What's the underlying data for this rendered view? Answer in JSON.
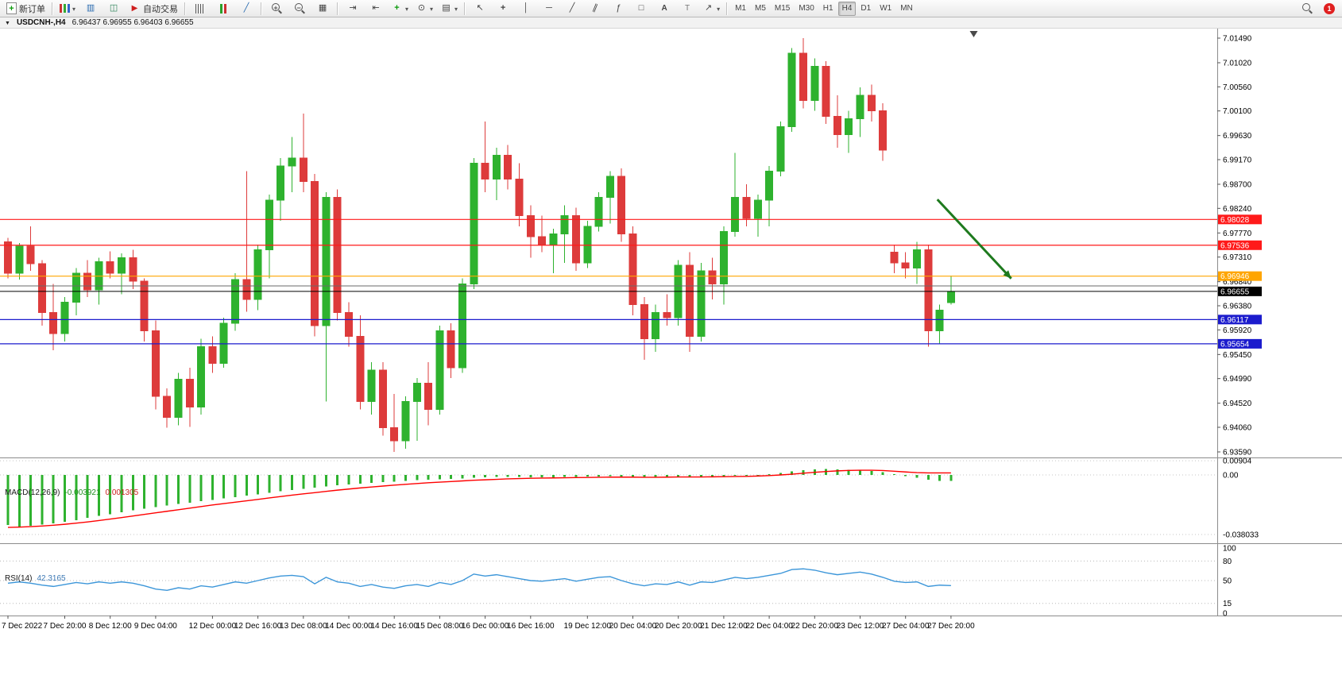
{
  "toolbar": {
    "new_order_label": "新订单",
    "autotrading_label": "自动交易",
    "timeframes": [
      "M1",
      "M5",
      "M15",
      "M30",
      "H1",
      "H4",
      "D1",
      "W1",
      "MN"
    ],
    "active_timeframe": "H4",
    "notification_count": "1",
    "icon_names": [
      "new-order-icon",
      "new-chart-icon",
      "profiles-icon",
      "data-window-icon",
      "autotrading-icon",
      "bars-chart-icon",
      "candlestick-chart-icon",
      "line-chart-icon",
      "zoom-in-icon",
      "zoom-out-icon",
      "tile-windows-icon",
      "auto-scroll-icon",
      "chart-shift-icon",
      "indicators-icon",
      "periods-icon",
      "templates-icon",
      "cursor-icon",
      "crosshair-icon",
      "vertical-line-icon",
      "horizontal-line-icon",
      "trendline-icon",
      "channel-icon",
      "fibonacci-icon",
      "shapes-icon",
      "text-icon",
      "text-label-icon",
      "arrows-icon",
      "search-icon"
    ]
  },
  "chart_header": {
    "symbol_period": "USDCNH-,H4",
    "ohlc_text": "6.96437 6.96955 6.96403 6.96655"
  },
  "indicators": {
    "macd_label": "MACD(12,26,9)",
    "macd_value": "-0.003921",
    "macd_signal_value": "0.001305",
    "rsi_label": "RSI(14)",
    "rsi_value": "42.3165"
  },
  "chart_data": {
    "type": "candlestick",
    "symbol": "USDCNH-",
    "timeframe": "H4",
    "bull_color": "#2eb22e",
    "bear_color": "#dd3b3b",
    "price_axis_ticks": [
      "7.01490",
      "7.01020",
      "7.00560",
      "7.00100",
      "6.99630",
      "6.99170",
      "6.98700",
      "6.98240",
      "6.97770",
      "6.97310",
      "6.96840",
      "6.96380",
      "6.95920",
      "6.95450",
      "6.94990",
      "6.94520",
      "6.94060",
      "6.93590"
    ],
    "time_labels": [
      {
        "text": "7 Dec 2022",
        "i": 0
      },
      {
        "text": "7 Dec 20:00",
        "i": 5
      },
      {
        "text": "8 Dec 12:00",
        "i": 9
      },
      {
        "text": "9 Dec 04:00",
        "i": 13
      },
      {
        "text": "12 Dec 00:00",
        "i": 18
      },
      {
        "text": "12 Dec 16:00",
        "i": 22
      },
      {
        "text": "13 Dec 08:00",
        "i": 26
      },
      {
        "text": "14 Dec 00:00",
        "i": 30
      },
      {
        "text": "14 Dec 16:00",
        "i": 34
      },
      {
        "text": "15 Dec 08:00",
        "i": 38
      },
      {
        "text": "16 Dec 00:00",
        "i": 42
      },
      {
        "text": "16 Dec 16:00",
        "i": 46
      },
      {
        "text": "19 Dec 12:00",
        "i": 51
      },
      {
        "text": "20 Dec 04:00",
        "i": 55
      },
      {
        "text": "20 Dec 20:00",
        "i": 59
      },
      {
        "text": "21 Dec 12:00",
        "i": 63
      },
      {
        "text": "22 Dec 04:00",
        "i": 67
      },
      {
        "text": "22 Dec 20:00",
        "i": 71
      },
      {
        "text": "23 Dec 12:00",
        "i": 75
      },
      {
        "text": "27 Dec 04:00",
        "i": 79
      },
      {
        "text": "27 Dec 20:00",
        "i": 83
      }
    ],
    "candles": [
      [
        6.976,
        6.9768,
        6.969,
        6.97
      ],
      [
        6.97,
        6.9758,
        6.9688,
        6.9752
      ],
      [
        6.9752,
        6.979,
        6.9705,
        6.9718
      ],
      [
        6.9718,
        6.9725,
        6.96,
        6.9625
      ],
      [
        6.9625,
        6.968,
        6.9553,
        6.9585
      ],
      [
        6.9585,
        6.9655,
        6.957,
        6.9645
      ],
      [
        6.9645,
        6.971,
        6.962,
        6.97
      ],
      [
        6.97,
        6.9725,
        6.9655,
        6.9668
      ],
      [
        6.9668,
        6.973,
        6.964,
        6.9722
      ],
      [
        6.9722,
        6.9742,
        6.969,
        6.97
      ],
      [
        6.97,
        6.9738,
        6.966,
        6.973
      ],
      [
        6.973,
        6.9745,
        6.967,
        6.9685
      ],
      [
        6.9685,
        6.969,
        6.957,
        6.959
      ],
      [
        6.959,
        6.961,
        6.944,
        6.9465
      ],
      [
        6.9465,
        6.948,
        6.9405,
        6.9425
      ],
      [
        6.9425,
        6.951,
        6.941,
        6.9498
      ],
      [
        6.9498,
        6.952,
        6.9407,
        6.9445
      ],
      [
        6.9445,
        6.9575,
        6.943,
        6.956
      ],
      [
        6.956,
        6.958,
        6.951,
        6.9528
      ],
      [
        6.9528,
        6.9615,
        6.952,
        6.9605
      ],
      [
        6.9605,
        6.97,
        6.959,
        6.9688
      ],
      [
        6.9688,
        6.9895,
        6.9627,
        6.965
      ],
      [
        6.965,
        6.9755,
        6.963,
        6.9745
      ],
      [
        6.9745,
        6.985,
        6.969,
        6.984
      ],
      [
        6.984,
        6.992,
        6.98,
        6.9905
      ],
      [
        6.9905,
        6.996,
        6.9855,
        6.992
      ],
      [
        6.992,
        7.0005,
        6.9855,
        6.9875
      ],
      [
        6.9875,
        6.989,
        6.958,
        6.96
      ],
      [
        6.96,
        6.9855,
        6.9455,
        6.9845
      ],
      [
        6.9845,
        6.986,
        6.961,
        6.9625
      ],
      [
        6.9625,
        6.9645,
        6.956,
        6.958
      ],
      [
        6.958,
        6.962,
        6.944,
        6.9455
      ],
      [
        6.9455,
        6.953,
        6.943,
        6.9515
      ],
      [
        6.9515,
        6.953,
        6.939,
        6.9405
      ],
      [
        6.9405,
        6.947,
        6.9359,
        6.938
      ],
      [
        6.938,
        6.9465,
        6.9365,
        6.9455
      ],
      [
        6.9455,
        6.95,
        6.938,
        6.949
      ],
      [
        6.949,
        6.953,
        6.941,
        6.944
      ],
      [
        6.944,
        6.96,
        6.943,
        6.959
      ],
      [
        6.959,
        6.9605,
        6.95,
        6.952
      ],
      [
        6.952,
        6.969,
        6.951,
        6.968
      ],
      [
        6.968,
        6.992,
        6.967,
        6.991
      ],
      [
        6.991,
        6.999,
        6.9855,
        6.988
      ],
      [
        6.988,
        6.994,
        6.984,
        6.9925
      ],
      [
        6.9925,
        6.9945,
        6.986,
        6.988
      ],
      [
        6.988,
        6.991,
        6.979,
        6.981
      ],
      [
        6.981,
        6.983,
        6.973,
        6.977
      ],
      [
        6.977,
        6.981,
        6.974,
        6.9755
      ],
      [
        6.9755,
        6.9785,
        6.97,
        6.9775
      ],
      [
        6.9775,
        6.983,
        6.972,
        6.981
      ],
      [
        6.981,
        6.9825,
        6.9705,
        6.972
      ],
      [
        6.972,
        6.98,
        6.971,
        6.979
      ],
      [
        6.979,
        6.9855,
        6.978,
        6.9845
      ],
      [
        6.9845,
        6.9895,
        6.9795,
        6.9885
      ],
      [
        6.9885,
        6.99,
        6.976,
        6.9775
      ],
      [
        6.9775,
        6.979,
        6.962,
        6.964
      ],
      [
        6.964,
        6.9655,
        6.9535,
        6.9575
      ],
      [
        6.9575,
        6.964,
        6.955,
        6.9625
      ],
      [
        6.9625,
        6.966,
        6.96,
        6.9615
      ],
      [
        6.9615,
        6.9725,
        6.96,
        6.9715
      ],
      [
        6.9715,
        6.974,
        6.955,
        6.958
      ],
      [
        6.958,
        6.972,
        6.957,
        6.9705
      ],
      [
        6.9705,
        6.973,
        6.965,
        6.968
      ],
      [
        6.968,
        6.979,
        6.964,
        6.978
      ],
      [
        6.978,
        6.993,
        6.977,
        6.9845
      ],
      [
        6.9845,
        6.987,
        6.979,
        6.9805
      ],
      [
        6.9805,
        6.985,
        6.977,
        6.984
      ],
      [
        6.984,
        6.9905,
        6.979,
        6.9895
      ],
      [
        6.9895,
        6.999,
        6.9885,
        6.998
      ],
      [
        6.998,
        7.013,
        6.997,
        7.012
      ],
      [
        7.012,
        7.0149,
        7.0015,
        7.003
      ],
      [
        7.003,
        7.011,
        7.001,
        7.0095
      ],
      [
        7.0095,
        7.0105,
        6.9985,
        7.0
      ],
      [
        7.0,
        7.004,
        6.994,
        6.9965
      ],
      [
        6.9965,
        7.001,
        6.993,
        6.9995
      ],
      [
        6.9995,
        7.0055,
        6.996,
        7.004
      ],
      [
        7.004,
        7.006,
        6.999,
        7.001
      ],
      [
        7.001,
        7.0025,
        6.9915,
        6.9935
      ],
      [
        6.974,
        6.9755,
        6.97,
        6.972
      ],
      [
        6.972,
        6.974,
        6.969,
        6.971
      ],
      [
        6.971,
        6.976,
        6.968,
        6.9745
      ],
      [
        6.9745,
        6.9755,
        6.956,
        6.959
      ],
      [
        6.959,
        6.964,
        6.9565,
        6.963
      ],
      [
        6.96437,
        6.96955,
        6.96403,
        6.96655
      ]
    ],
    "levels": [
      {
        "price": 6.98028,
        "label": "6.98028",
        "color": "#ff1a1a"
      },
      {
        "price": 6.97536,
        "label": "6.97536",
        "color": "#ff1a1a"
      },
      {
        "price": 6.96946,
        "label": "6.96946",
        "color": "#ffa500"
      },
      {
        "price": 6.96117,
        "label": "6.96117",
        "color": "#1c1ccd"
      },
      {
        "price": 6.95654,
        "label": "6.95654",
        "color": "#1c1ccd"
      }
    ],
    "gray_line": {
      "price": 6.9676,
      "color": "#6a6a6a"
    },
    "bid_line": {
      "price": 6.96655,
      "label": "6.96655",
      "color": "#000000"
    },
    "arrow_annotation": {
      "x1_bar": 81.8,
      "y1_price": 6.9841,
      "x2_bar": 88.3,
      "y2_price": 6.969,
      "color": "#1e7a1e"
    },
    "shift_marker_bar": 85,
    "macd": {
      "scale_labels": [
        "0.00904",
        "0.00",
        "-0.038033"
      ],
      "scale_values": [
        0.00904,
        0,
        -0.038033
      ],
      "histogram_color": "#2eb22e",
      "signal_color": "#ff0000",
      "histogram": [
        -0.032,
        -0.033,
        -0.0325,
        -0.0318,
        -0.031,
        -0.03,
        -0.0288,
        -0.0275,
        -0.0262,
        -0.025,
        -0.0238,
        -0.0226,
        -0.0215,
        -0.0205,
        -0.0196,
        -0.0186,
        -0.0177,
        -0.0168,
        -0.0159,
        -0.015,
        -0.0141,
        -0.0132,
        -0.0123,
        -0.0114,
        -0.0105,
        -0.0096,
        -0.0088,
        -0.008,
        -0.0073,
        -0.0066,
        -0.006,
        -0.0055,
        -0.005,
        -0.0046,
        -0.0042,
        -0.0038,
        -0.0034,
        -0.0031,
        -0.0028,
        -0.0025,
        -0.0022,
        -0.0018,
        -0.0015,
        -0.0013,
        -0.0012,
        -0.0013,
        -0.0015,
        -0.0016,
        -0.0015,
        -0.0013,
        -0.0012,
        -0.0011,
        -0.001,
        -0.0008,
        -0.0009,
        -0.0012,
        -0.0015,
        -0.0014,
        -0.0012,
        -0.001,
        -0.0013,
        -0.0012,
        -0.001,
        -0.0008,
        -0.0005,
        -0.0004,
        0.0,
        0.0006,
        0.0013,
        0.0022,
        0.003,
        0.0035,
        0.0037,
        0.0036,
        0.0033,
        0.003,
        0.0026,
        0.0018,
        0.0005,
        -0.0008,
        -0.0018,
        -0.003,
        -0.0037,
        -0.003921
      ],
      "signal": [
        -0.0335,
        -0.0333,
        -0.033,
        -0.0326,
        -0.0321,
        -0.0315,
        -0.0308,
        -0.03,
        -0.0291,
        -0.0282,
        -0.0272,
        -0.0262,
        -0.0252,
        -0.0242,
        -0.0232,
        -0.0222,
        -0.0212,
        -0.0202,
        -0.0192,
        -0.0183,
        -0.0174,
        -0.0165,
        -0.0156,
        -0.0147,
        -0.0138,
        -0.0129,
        -0.0121,
        -0.0113,
        -0.0105,
        -0.0097,
        -0.009,
        -0.0083,
        -0.0077,
        -0.0071,
        -0.0065,
        -0.006,
        -0.0055,
        -0.005,
        -0.0046,
        -0.0042,
        -0.0038,
        -0.0034,
        -0.0031,
        -0.0028,
        -0.0025,
        -0.0023,
        -0.0021,
        -0.002,
        -0.0019,
        -0.0018,
        -0.0017,
        -0.0016,
        -0.0015,
        -0.0014,
        -0.0014,
        -0.0014,
        -0.0015,
        -0.0015,
        -0.0014,
        -0.0013,
        -0.0013,
        -0.0013,
        -0.0012,
        -0.0011,
        -0.001,
        -0.0009,
        -0.0007,
        -0.0004,
        0.0,
        0.0005,
        0.0011,
        0.0017,
        0.0022,
        0.0026,
        0.0029,
        0.003,
        0.003,
        0.0028,
        0.0024,
        0.0019,
        0.0015,
        0.0013,
        0.0013,
        0.001305
      ]
    },
    "rsi": {
      "color": "#3c96d9",
      "levels": [
        80,
        50,
        15
      ],
      "scale_labels": [
        "100",
        "80",
        "50",
        "15",
        "0"
      ],
      "scale_values": [
        100,
        80,
        50,
        15,
        0
      ],
      "values": [
        46,
        48,
        46,
        43,
        41,
        44,
        47,
        45,
        48,
        46,
        48,
        46,
        42,
        37,
        35,
        39,
        37,
        42,
        40,
        44,
        48,
        46,
        50,
        54,
        57,
        58,
        56,
        45,
        55,
        48,
        46,
        41,
        44,
        40,
        38,
        42,
        44,
        41,
        47,
        44,
        50,
        60,
        57,
        59,
        56,
        53,
        50,
        49,
        51,
        53,
        49,
        52,
        55,
        56,
        50,
        45,
        42,
        45,
        44,
        48,
        43,
        48,
        47,
        51,
        55,
        53,
        55,
        58,
        61,
        67,
        68,
        66,
        62,
        59,
        61,
        63,
        60,
        55,
        49,
        47,
        48,
        41,
        43,
        42.3165
      ]
    }
  }
}
